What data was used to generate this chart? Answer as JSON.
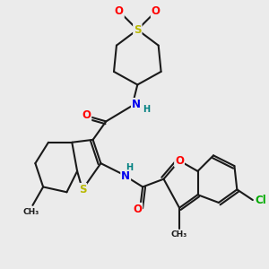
{
  "bg_color": "#ebebeb",
  "bond_color": "#1a1a1a",
  "bond_width": 1.5,
  "atom_colors": {
    "S": "#b8b800",
    "O": "#ff0000",
    "N": "#0000ee",
    "H": "#008080",
    "Cl": "#00aa00",
    "C": "#1a1a1a"
  },
  "font_size": 8.5,
  "figsize": [
    3.0,
    3.0
  ],
  "dpi": 100
}
